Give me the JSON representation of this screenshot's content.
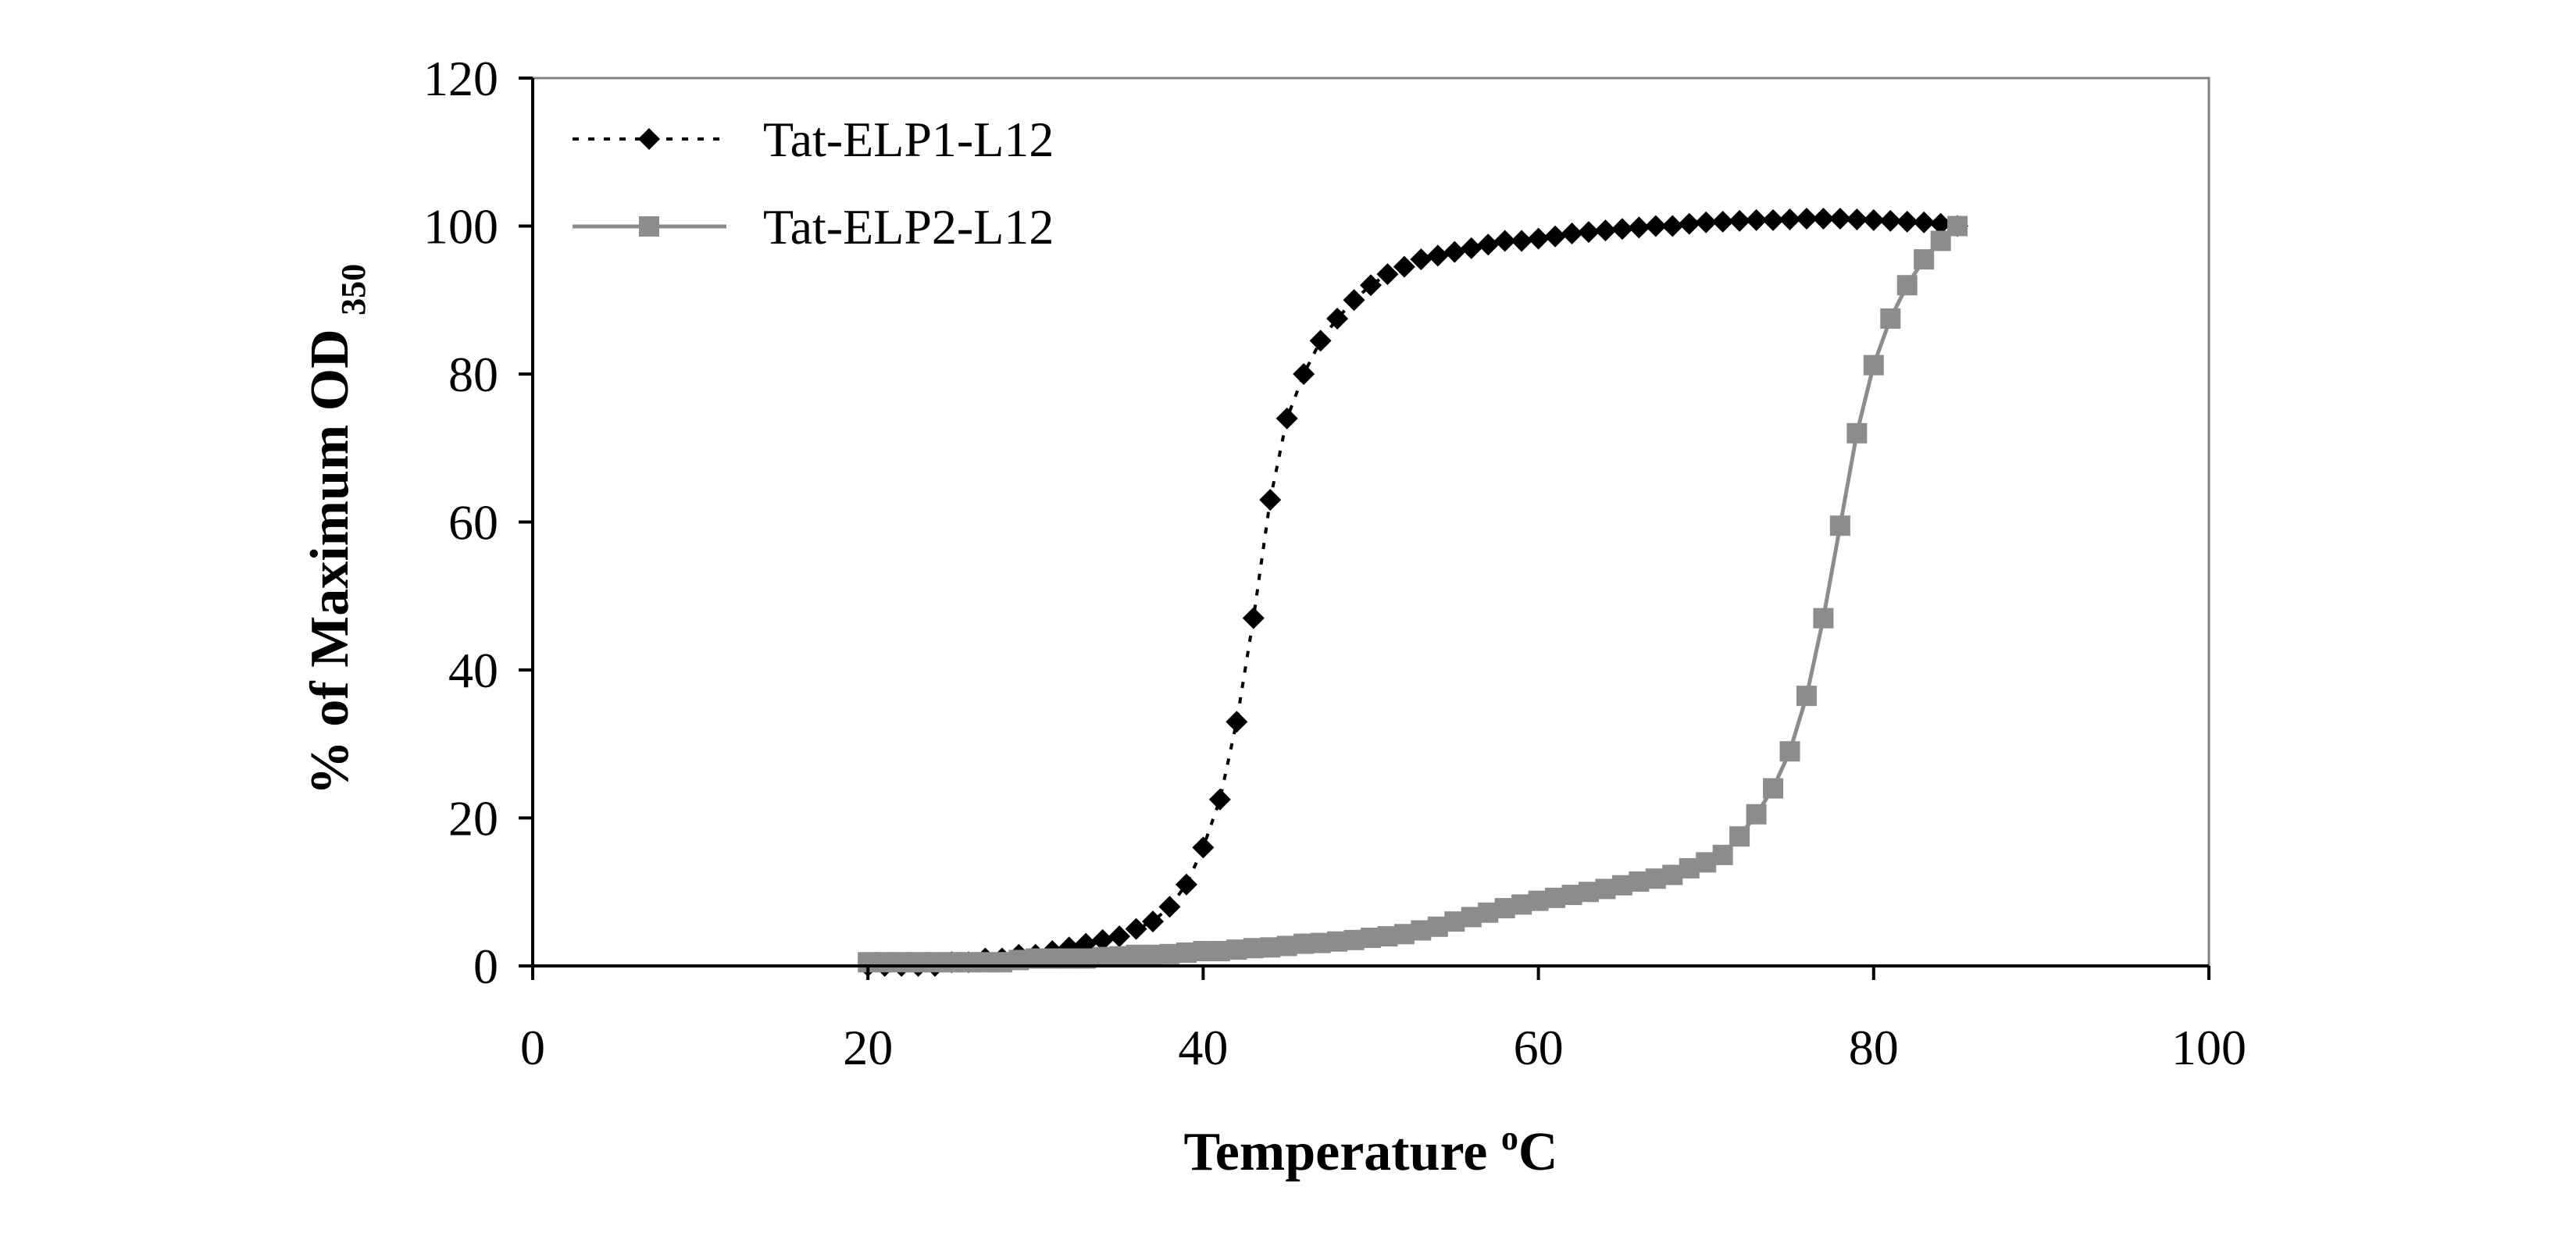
{
  "chart_data": {
    "type": "scatter",
    "title": "",
    "xlabel": "Temperature",
    "xlabel_sup": "o",
    "xlabel_suffix": "C",
    "ylabel": "% of Maximum OD",
    "ylabel_sub": "350",
    "xlim": [
      0,
      100
    ],
    "ylim": [
      0,
      120
    ],
    "x_ticks": [
      0,
      20,
      40,
      60,
      80,
      100
    ],
    "y_ticks": [
      0,
      20,
      40,
      60,
      80,
      100,
      120
    ],
    "x_tick_labels": [
      "0",
      "20",
      "40",
      "60",
      "80",
      "100"
    ],
    "y_tick_labels": [
      "0",
      "20",
      "40",
      "60",
      "80",
      "100",
      "120"
    ],
    "legend_position": "top-left",
    "series": [
      {
        "name": "Tat-ELP1-L12",
        "color": "#000000",
        "marker": "diamond",
        "line_style": "dotted",
        "x": [
          20,
          21,
          22,
          23,
          24,
          25,
          26,
          27,
          28,
          29,
          30,
          31,
          32,
          33,
          34,
          35,
          36,
          37,
          38,
          39,
          40,
          41,
          42,
          43,
          44,
          45,
          46,
          47,
          48,
          49,
          50,
          51,
          52,
          53,
          54,
          55,
          56,
          57,
          58,
          59,
          60,
          61,
          62,
          63,
          64,
          65,
          66,
          67,
          68,
          69,
          70,
          71,
          72,
          73,
          74,
          75,
          76,
          77,
          78,
          79,
          80,
          81,
          82,
          83,
          84,
          85
        ],
        "y": [
          0,
          0,
          0,
          0,
          0,
          0.5,
          0.5,
          1,
          1,
          1.5,
          1.5,
          2,
          2.5,
          3,
          3.5,
          4,
          5,
          6,
          8,
          11,
          16,
          22.5,
          33,
          47,
          63,
          74,
          80,
          84.5,
          87.5,
          90,
          92,
          93.5,
          94.5,
          95.5,
          96,
          96.5,
          97,
          97.5,
          98,
          98,
          98.3,
          98.6,
          99,
          99.2,
          99.4,
          99.6,
          99.8,
          100,
          100,
          100.3,
          100.5,
          100.6,
          100.7,
          100.8,
          100.8,
          100.9,
          101,
          101,
          101,
          100.9,
          100.8,
          100.7,
          100.6,
          100.5,
          100.3,
          100
        ]
      },
      {
        "name": "Tat-ELP2-L12",
        "color": "#8c8c8c",
        "marker": "square",
        "line_style": "solid",
        "x": [
          20,
          21,
          22,
          23,
          24,
          25,
          26,
          27,
          28,
          29,
          30,
          31,
          32,
          33,
          34,
          35,
          36,
          37,
          38,
          39,
          40,
          41,
          42,
          43,
          44,
          45,
          46,
          47,
          48,
          49,
          50,
          51,
          52,
          53,
          54,
          55,
          56,
          57,
          58,
          59,
          60,
          61,
          62,
          63,
          64,
          65,
          66,
          67,
          68,
          69,
          70,
          71,
          72,
          73,
          74,
          75,
          76,
          77,
          78,
          79,
          80,
          81,
          82,
          83,
          84,
          85
        ],
        "y": [
          0.5,
          0.5,
          0.5,
          0.5,
          0.5,
          0.5,
          0.5,
          0.5,
          0.5,
          0.8,
          1,
          1,
          1,
          1,
          1.2,
          1.3,
          1.5,
          1.5,
          1.6,
          1.8,
          2,
          2,
          2.2,
          2.4,
          2.5,
          2.7,
          3,
          3.1,
          3.3,
          3.5,
          3.8,
          4,
          4.3,
          4.8,
          5.3,
          6,
          6.6,
          7.2,
          7.8,
          8.3,
          8.8,
          9.2,
          9.6,
          10,
          10.4,
          10.9,
          11.4,
          11.8,
          12.3,
          13.2,
          14,
          15,
          17.5,
          20.5,
          24,
          29,
          36.5,
          47,
          59.5,
          72,
          81.2,
          87.5,
          92,
          95.5,
          98,
          100
        ]
      }
    ]
  }
}
